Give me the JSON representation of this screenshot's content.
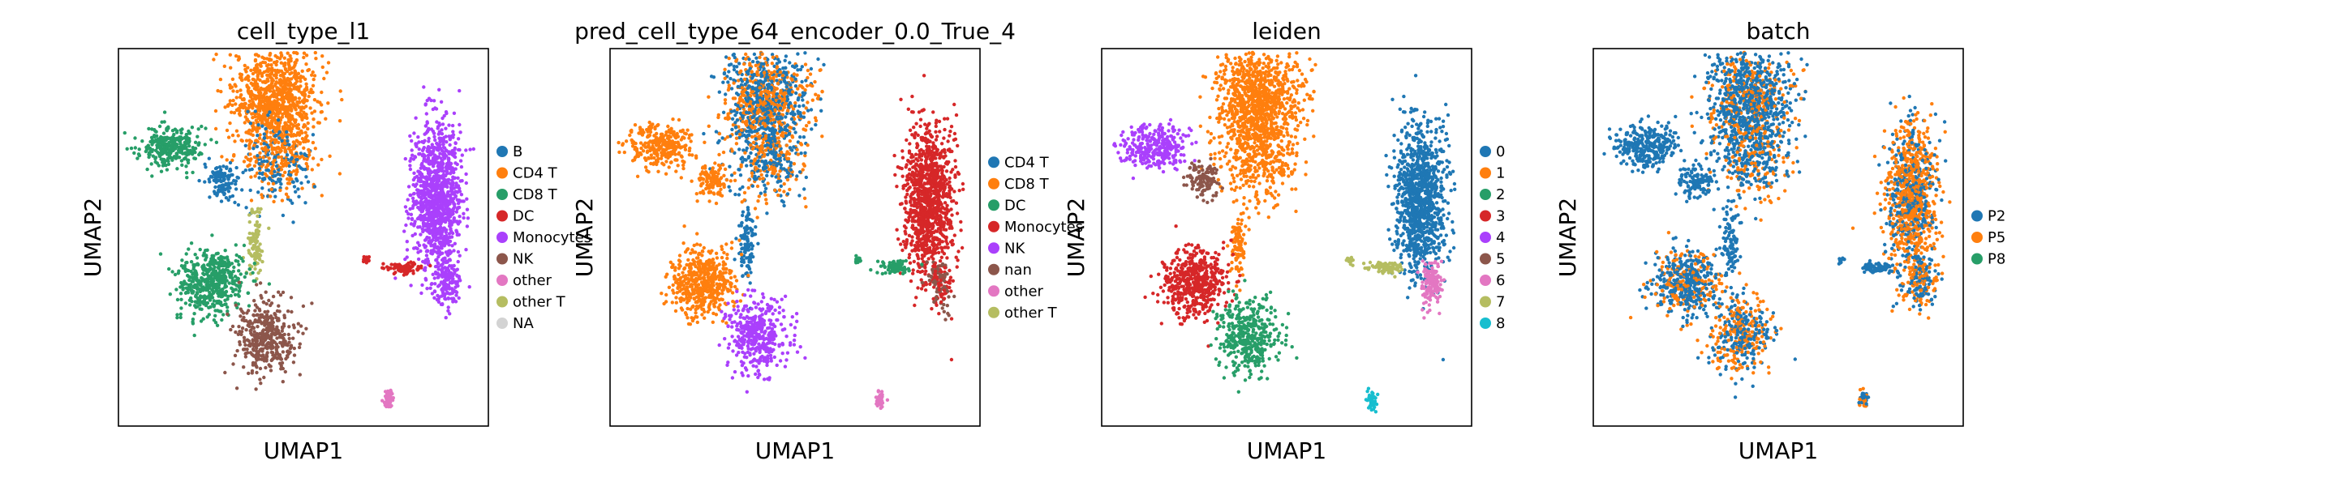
{
  "figure": {
    "background": "#ffffff"
  },
  "chart_data": [
    {
      "type": "scatter",
      "title": "cell_type_l1",
      "xlabel": "UMAP1",
      "ylabel": "UMAP2",
      "grid": false,
      "ticks": false,
      "legend_position": "right",
      "legend": [
        {
          "label": "B",
          "color": "#1f77b4"
        },
        {
          "label": "CD4 T",
          "color": "#ff7f0e"
        },
        {
          "label": "CD8 T",
          "color": "#279e68"
        },
        {
          "label": "DC",
          "color": "#d62728"
        },
        {
          "label": "Monocytes",
          "color": "#aa40fc"
        },
        {
          "label": "NK",
          "color": "#8c564b"
        },
        {
          "label": "other",
          "color": "#e377c2"
        },
        {
          "label": "other T",
          "color": "#b5bd61"
        },
        {
          "label": "NA",
          "color": "#d3d3d3"
        }
      ]
    },
    {
      "type": "scatter",
      "title": "pred_cell_type_64_encoder_0.0_True_4",
      "xlabel": "UMAP1",
      "ylabel": "UMAP2",
      "grid": false,
      "ticks": false,
      "legend_position": "right",
      "legend": [
        {
          "label": "CD4 T",
          "color": "#1f77b4"
        },
        {
          "label": "CD8 T",
          "color": "#ff7f0e"
        },
        {
          "label": "DC",
          "color": "#279e68"
        },
        {
          "label": "Monocytes",
          "color": "#d62728"
        },
        {
          "label": "NK",
          "color": "#aa40fc"
        },
        {
          "label": "nan",
          "color": "#8c564b"
        },
        {
          "label": "other",
          "color": "#e377c2"
        },
        {
          "label": "other T",
          "color": "#b5bd61"
        }
      ]
    },
    {
      "type": "scatter",
      "title": "leiden",
      "xlabel": "UMAP1",
      "ylabel": "UMAP2",
      "grid": false,
      "ticks": false,
      "legend_position": "right",
      "legend": [
        {
          "label": "0",
          "color": "#1f77b4"
        },
        {
          "label": "1",
          "color": "#ff7f0e"
        },
        {
          "label": "2",
          "color": "#279e68"
        },
        {
          "label": "3",
          "color": "#d62728"
        },
        {
          "label": "4",
          "color": "#aa40fc"
        },
        {
          "label": "5",
          "color": "#8c564b"
        },
        {
          "label": "6",
          "color": "#e377c2"
        },
        {
          "label": "7",
          "color": "#b5bd61"
        },
        {
          "label": "8",
          "color": "#17becf"
        }
      ]
    },
    {
      "type": "scatter",
      "title": "batch",
      "xlabel": "UMAP1",
      "ylabel": "UMAP2",
      "grid": false,
      "ticks": false,
      "legend_position": "right",
      "legend": [
        {
          "label": "P2",
          "color": "#1f77b4"
        },
        {
          "label": "P5",
          "color": "#ff7f0e"
        },
        {
          "label": "P8",
          "color": "#279e68"
        }
      ]
    }
  ]
}
